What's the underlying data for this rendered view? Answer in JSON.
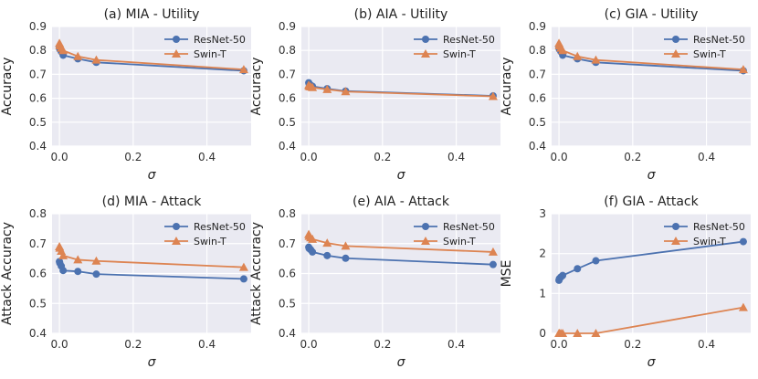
{
  "colors": {
    "panel_bg": "#eaeaf2",
    "grid": "#ffffff",
    "resnet": "#4c72b0",
    "swin": "#dd8452"
  },
  "chart_data": [
    {
      "type": "line",
      "title": "(a) MIA - Utility",
      "xlabel": "σ",
      "ylabel": "Accuracy",
      "xlim": [
        -0.02,
        0.52
      ],
      "ylim": [
        0.4,
        0.9
      ],
      "xticks": [
        0.0,
        0.2,
        0.4
      ],
      "xtick_labels": [
        "0.0",
        "0.2",
        "0.4"
      ],
      "yticks": [
        0.4,
        0.5,
        0.6,
        0.7,
        0.8,
        0.9
      ],
      "ytick_labels": [
        "0.4",
        "0.5",
        "0.6",
        "0.7",
        "0.8",
        "0.9"
      ],
      "grid": true,
      "legend_position": "top-right",
      "x": [
        0.0,
        0.001,
        0.005,
        0.01,
        0.05,
        0.1,
        0.5
      ],
      "series": [
        {
          "name": "ResNet-50",
          "marker": "circle",
          "values": [
            0.81,
            0.805,
            0.795,
            0.78,
            0.765,
            0.75,
            0.715
          ]
        },
        {
          "name": "Swin-T",
          "marker": "triangle",
          "values": [
            0.83,
            0.82,
            0.81,
            0.8,
            0.775,
            0.76,
            0.72
          ]
        }
      ]
    },
    {
      "type": "line",
      "title": "(b) AIA - Utility",
      "xlabel": "σ",
      "ylabel": "Accuracy",
      "xlim": [
        -0.02,
        0.52
      ],
      "ylim": [
        0.4,
        0.9
      ],
      "xticks": [
        0.0,
        0.2,
        0.4
      ],
      "xtick_labels": [
        "0.0",
        "0.2",
        "0.4"
      ],
      "yticks": [
        0.4,
        0.5,
        0.6,
        0.7,
        0.8,
        0.9
      ],
      "ytick_labels": [
        "0.4",
        "0.5",
        "0.6",
        "0.7",
        "0.8",
        "0.9"
      ],
      "grid": true,
      "legend_position": "top-right",
      "x": [
        0.0,
        0.001,
        0.005,
        0.01,
        0.05,
        0.1,
        0.5
      ],
      "series": [
        {
          "name": "ResNet-50",
          "marker": "circle",
          "values": [
            0.665,
            0.66,
            0.655,
            0.65,
            0.64,
            0.63,
            0.61
          ]
        },
        {
          "name": "Swin-T",
          "marker": "triangle",
          "values": [
            0.655,
            0.65,
            0.648,
            0.645,
            0.637,
            0.628,
            0.608
          ]
        }
      ]
    },
    {
      "type": "line",
      "title": "(c) GIA - Utility",
      "xlabel": "σ",
      "ylabel": "Accuracy",
      "xlim": [
        -0.02,
        0.52
      ],
      "ylim": [
        0.4,
        0.9
      ],
      "xticks": [
        0.0,
        0.2,
        0.4
      ],
      "xtick_labels": [
        "0.0",
        "0.2",
        "0.4"
      ],
      "yticks": [
        0.4,
        0.5,
        0.6,
        0.7,
        0.8,
        0.9
      ],
      "ytick_labels": [
        "0.4",
        "0.5",
        "0.6",
        "0.7",
        "0.8",
        "0.9"
      ],
      "grid": true,
      "legend_position": "top-right",
      "x": [
        0.0,
        0.001,
        0.005,
        0.01,
        0.05,
        0.1,
        0.5
      ],
      "series": [
        {
          "name": "ResNet-50",
          "marker": "circle",
          "values": [
            0.81,
            0.805,
            0.795,
            0.78,
            0.765,
            0.75,
            0.715
          ]
        },
        {
          "name": "Swin-T",
          "marker": "triangle",
          "values": [
            0.83,
            0.82,
            0.81,
            0.8,
            0.775,
            0.76,
            0.72
          ]
        }
      ]
    },
    {
      "type": "line",
      "title": "(d) MIA - Attack",
      "xlabel": "σ",
      "ylabel": "Attack Accuracy",
      "xlim": [
        -0.02,
        0.52
      ],
      "ylim": [
        0.4,
        0.8
      ],
      "xticks": [
        0.0,
        0.2,
        0.4
      ],
      "xtick_labels": [
        "0.0",
        "0.2",
        "0.4"
      ],
      "yticks": [
        0.4,
        0.5,
        0.6,
        0.7,
        0.8
      ],
      "ytick_labels": [
        "0.4",
        "0.5",
        "0.6",
        "0.7",
        "0.8"
      ],
      "grid": true,
      "legend_position": "top-right",
      "x": [
        0.0,
        0.001,
        0.005,
        0.01,
        0.05,
        0.1,
        0.5
      ],
      "series": [
        {
          "name": "ResNet-50",
          "marker": "circle",
          "values": [
            0.64,
            0.635,
            0.625,
            0.61,
            0.607,
            0.598,
            0.582
          ]
        },
        {
          "name": "Swin-T",
          "marker": "triangle",
          "values": [
            0.69,
            0.685,
            0.675,
            0.66,
            0.646,
            0.642,
            0.621
          ]
        }
      ]
    },
    {
      "type": "line",
      "title": "(e) AIA - Attack",
      "xlabel": "σ",
      "ylabel": "Attack Accuracy",
      "xlim": [
        -0.02,
        0.52
      ],
      "ylim": [
        0.4,
        0.8
      ],
      "xticks": [
        0.0,
        0.2,
        0.4
      ],
      "xtick_labels": [
        "0.0",
        "0.2",
        "0.4"
      ],
      "yticks": [
        0.4,
        0.5,
        0.6,
        0.7,
        0.8
      ],
      "ytick_labels": [
        "0.4",
        "0.5",
        "0.6",
        "0.7",
        "0.8"
      ],
      "grid": true,
      "legend_position": "top-right",
      "x": [
        0.0,
        0.001,
        0.005,
        0.01,
        0.05,
        0.1,
        0.5
      ],
      "series": [
        {
          "name": "ResNet-50",
          "marker": "circle",
          "values": [
            0.688,
            0.684,
            0.68,
            0.672,
            0.66,
            0.651,
            0.63
          ]
        },
        {
          "name": "Swin-T",
          "marker": "triangle",
          "values": [
            0.731,
            0.725,
            0.72,
            0.715,
            0.702,
            0.692,
            0.672
          ]
        }
      ]
    },
    {
      "type": "line",
      "title": "(f) GIA - Attack",
      "xlabel": "σ",
      "ylabel": "MSE",
      "xlim": [
        -0.02,
        0.52
      ],
      "ylim": [
        0,
        3
      ],
      "xticks": [
        0.0,
        0.2,
        0.4
      ],
      "xtick_labels": [
        "0.0",
        "0.2",
        "0.4"
      ],
      "yticks": [
        0,
        1,
        2,
        3
      ],
      "ytick_labels": [
        "0",
        "1",
        "2",
        "3"
      ],
      "grid": true,
      "legend_position": "top-right",
      "x": [
        0.0,
        0.001,
        0.005,
        0.01,
        0.05,
        0.1,
        0.5
      ],
      "series": [
        {
          "name": "ResNet-50",
          "marker": "circle",
          "values": [
            1.33,
            1.37,
            1.41,
            1.45,
            1.62,
            1.82,
            2.3
          ]
        },
        {
          "name": "Swin-T",
          "marker": "triangle",
          "values": [
            0.0,
            0.0,
            0.0,
            0.0,
            0.0,
            0.0,
            0.65
          ]
        }
      ]
    }
  ]
}
